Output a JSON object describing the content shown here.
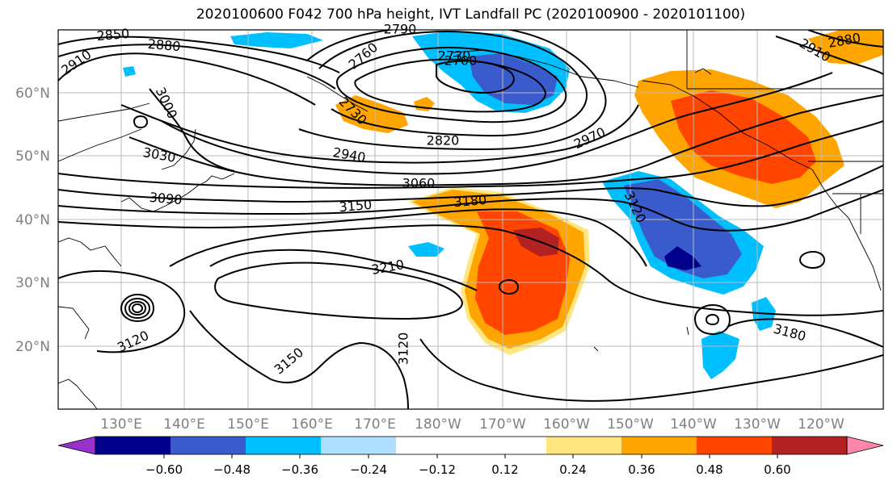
{
  "title": "2020100600 F042 700 hPa height, IVT Landfall PC (2020100900 - 2020101100)",
  "lat_labels": [
    "60°N",
    "50°N",
    "40°N",
    "30°N",
    "20°N"
  ],
  "lon_labels": [
    "130°E",
    "140°E",
    "150°E",
    "160°E",
    "170°E",
    "180°W",
    "170°W",
    "160°W",
    "150°W",
    "140°W",
    "130°W",
    "120°W"
  ],
  "contour_labels": [
    "2850",
    "2880",
    "2910",
    "2760",
    "2730",
    "2790",
    "2700",
    "2730",
    "3000",
    "3030",
    "3090",
    "2940",
    "2820",
    "2970",
    "3060",
    "3150",
    "3180",
    "3120",
    "3210",
    "3120",
    "3150",
    "3120",
    "3180",
    "2910",
    "2880"
  ],
  "colorbar": {
    "colors": [
      "#9932CC",
      "#00008B",
      "#3A5BCB",
      "#00BFFF",
      "#B0E0FF",
      "#FFFFFF",
      "#FFFFFF",
      "#FFE680",
      "#FFA500",
      "#FF4500",
      "#B22222",
      "#FF88AA"
    ],
    "ticks": [
      "−0.60",
      "−0.48",
      "−0.36",
      "−0.24",
      "−0.12",
      "0.12",
      "0.24",
      "0.36",
      "0.48",
      "0.60"
    ]
  },
  "colors": {
    "orange": "#FFA500",
    "red_orange": "#FF4500",
    "dark_red": "#B22222",
    "light_yellow": "#FFE680",
    "cyan": "#00BFFF",
    "blue": "#3A5BCB",
    "navy": "#00008B",
    "grid": "#BBBBBB",
    "axis_label": "#808080"
  }
}
